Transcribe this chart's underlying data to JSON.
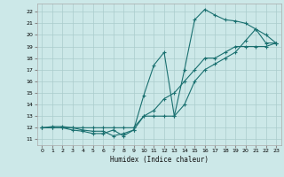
{
  "xlabel": "Humidex (Indice chaleur)",
  "bg_color": "#cce8e8",
  "grid_color": "#aacccc",
  "line_color": "#1a7070",
  "xlim": [
    -0.5,
    23.5
  ],
  "ylim": [
    10.5,
    22.7
  ],
  "xticks": [
    0,
    1,
    2,
    3,
    4,
    5,
    6,
    7,
    8,
    9,
    10,
    11,
    12,
    13,
    14,
    15,
    16,
    17,
    18,
    19,
    20,
    21,
    22,
    23
  ],
  "yticks": [
    11,
    12,
    13,
    14,
    15,
    16,
    17,
    18,
    19,
    20,
    21,
    22
  ],
  "series1_x": [
    0,
    1,
    2,
    3,
    4,
    5,
    6,
    7,
    8,
    9,
    10,
    11,
    12,
    13,
    14,
    15,
    16,
    17,
    18,
    19,
    20,
    21,
    22,
    23
  ],
  "series1_y": [
    12,
    12.1,
    12.1,
    12.0,
    11.8,
    11.7,
    11.7,
    11.3,
    11.5,
    11.8,
    13.0,
    13.0,
    13.0,
    13.0,
    14.0,
    16.0,
    17.0,
    17.5,
    18.0,
    18.5,
    19.5,
    20.5,
    20.0,
    19.3
  ],
  "series2_x": [
    0,
    1,
    2,
    3,
    4,
    5,
    6,
    7,
    8,
    9,
    10,
    11,
    12,
    13,
    14,
    15,
    16,
    17,
    18,
    19,
    20,
    21,
    22,
    23
  ],
  "series2_y": [
    12,
    12.0,
    12.0,
    11.8,
    11.7,
    11.5,
    11.5,
    11.8,
    11.3,
    11.8,
    14.8,
    17.4,
    18.5,
    13.0,
    17.0,
    21.3,
    22.2,
    21.7,
    21.3,
    21.2,
    21.0,
    20.5,
    19.3,
    19.3
  ],
  "series3_x": [
    0,
    1,
    2,
    3,
    4,
    5,
    6,
    7,
    8,
    9,
    10,
    11,
    12,
    13,
    14,
    15,
    16,
    17,
    18,
    19,
    20,
    21,
    22,
    23
  ],
  "series3_y": [
    12,
    12.0,
    12.0,
    12.0,
    12.0,
    12.0,
    12.0,
    12.0,
    12.0,
    12.0,
    13.0,
    13.5,
    14.5,
    15.0,
    16.0,
    17.0,
    18.0,
    18.0,
    18.5,
    19.0,
    19.0,
    19.0,
    19.0,
    19.3
  ]
}
